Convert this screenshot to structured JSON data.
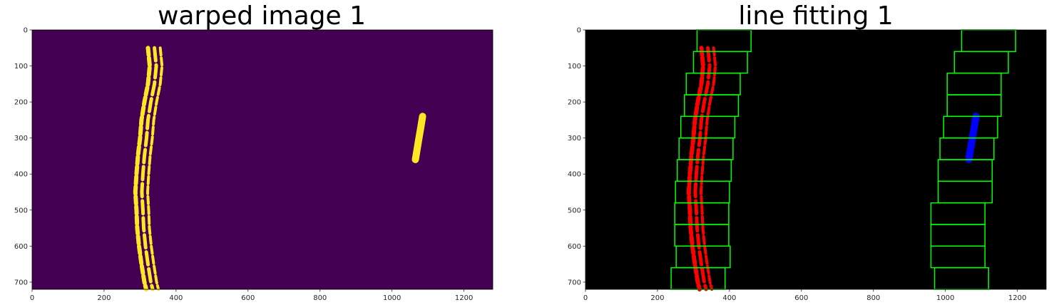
{
  "panels": [
    {
      "title": "warped image 1",
      "background": "#440154",
      "pixel_color": "#fde725",
      "window_color": null,
      "x_ticks": [
        "0",
        "200",
        "400",
        "600",
        "800",
        "1000",
        "1200"
      ],
      "y_ticks": [
        "0",
        "100",
        "200",
        "300",
        "400",
        "500",
        "600",
        "700"
      ],
      "xlim": [
        0,
        1280
      ],
      "ylim": [
        720,
        0
      ]
    },
    {
      "title": "line fitting 1",
      "background": "#000000",
      "left_lane_color": "#ff0000",
      "right_lane_color": "#0000ff",
      "window_color": "#00ff00",
      "x_ticks": [
        "0",
        "200",
        "400",
        "600",
        "800",
        "1000",
        "1200"
      ],
      "y_ticks": [
        "0",
        "100",
        "200",
        "300",
        "400",
        "500",
        "600",
        "700"
      ],
      "xlim": [
        0,
        1280
      ],
      "ylim": [
        720,
        0
      ]
    }
  ],
  "lane_data": {
    "left_lane": [
      [
        340,
        50
      ],
      [
        345,
        100
      ],
      [
        340,
        150
      ],
      [
        330,
        200
      ],
      [
        322,
        250
      ],
      [
        318,
        300
      ],
      [
        312,
        350
      ],
      [
        308,
        400
      ],
      [
        305,
        450
      ],
      [
        308,
        500
      ],
      [
        310,
        550
      ],
      [
        315,
        600
      ],
      [
        322,
        650
      ],
      [
        330,
        700
      ],
      [
        335,
        720
      ]
    ],
    "right_lane": [
      [
        1085,
        240
      ],
      [
        1080,
        270
      ],
      [
        1075,
        300
      ],
      [
        1070,
        330
      ],
      [
        1065,
        360
      ]
    ],
    "left_windows": [
      [
        310,
        0,
        460,
        60
      ],
      [
        300,
        60,
        450,
        120
      ],
      [
        280,
        120,
        430,
        180
      ],
      [
        275,
        180,
        425,
        240
      ],
      [
        265,
        240,
        415,
        300
      ],
      [
        260,
        300,
        410,
        360
      ],
      [
        255,
        360,
        405,
        420
      ],
      [
        250,
        420,
        400,
        480
      ],
      [
        248,
        480,
        398,
        540
      ],
      [
        248,
        540,
        398,
        600
      ],
      [
        252,
        600,
        402,
        660
      ],
      [
        238,
        660,
        388,
        720
      ]
    ],
    "right_windows": [
      [
        1045,
        0,
        1195,
        60
      ],
      [
        1025,
        60,
        1175,
        120
      ],
      [
        1005,
        120,
        1155,
        180
      ],
      [
        1005,
        180,
        1155,
        240
      ],
      [
        995,
        240,
        1145,
        300
      ],
      [
        985,
        300,
        1135,
        360
      ],
      [
        980,
        360,
        1130,
        420
      ],
      [
        980,
        420,
        1130,
        480
      ],
      [
        960,
        480,
        1110,
        540
      ],
      [
        960,
        540,
        1110,
        600
      ],
      [
        960,
        600,
        1110,
        660
      ],
      [
        970,
        660,
        1120,
        720
      ]
    ]
  }
}
